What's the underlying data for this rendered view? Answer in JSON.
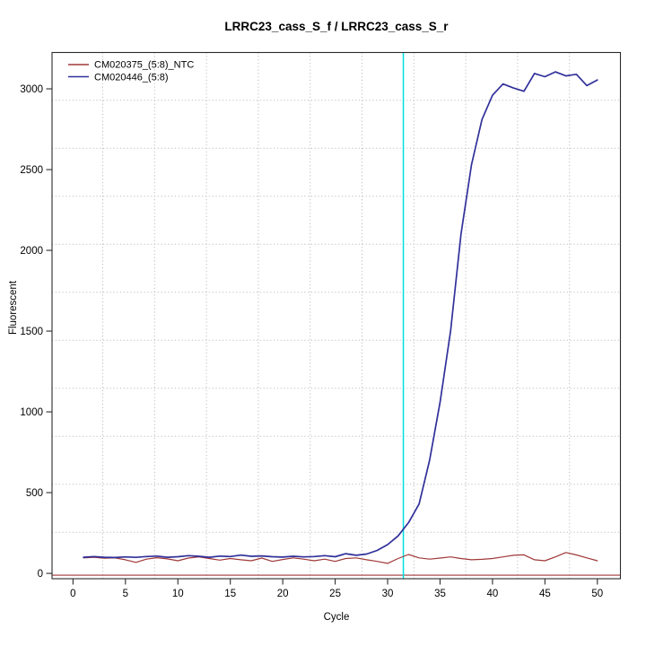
{
  "chart_data": {
    "type": "line",
    "title": "LRRC23_cass_S_f / LRRC23_cass_S_r",
    "xlabel": "Cycle",
    "ylabel": "Fluorescent",
    "x_ticks": [
      0,
      5,
      10,
      15,
      20,
      25,
      30,
      35,
      40,
      45,
      50
    ],
    "y_ticks": [
      0,
      500,
      1000,
      1500,
      2000,
      2500,
      3000
    ],
    "xlim": [
      -2.0,
      52.2
    ],
    "ylim": [
      -33,
      3225
    ],
    "grid": "dotted",
    "grid_color": "#bdbdbd",
    "legend_position": "top-left",
    "x": [
      1,
      2,
      3,
      4,
      5,
      6,
      7,
      8,
      9,
      10,
      11,
      12,
      13,
      14,
      15,
      16,
      17,
      18,
      19,
      20,
      21,
      22,
      23,
      24,
      25,
      26,
      27,
      28,
      29,
      30,
      31,
      32,
      33,
      34,
      35,
      36,
      37,
      38,
      39,
      40,
      41,
      42,
      43,
      44,
      45,
      46,
      47,
      48,
      49,
      50
    ],
    "series": [
      {
        "name": "CM020375_(5:8)_NTC",
        "color": "#a03838",
        "line_width": 1.2,
        "values": [
          96,
          100,
          94,
          96,
          84,
          68,
          88,
          97,
          90,
          78,
          95,
          102,
          92,
          82,
          92,
          84,
          78,
          95,
          74,
          86,
          96,
          88,
          78,
          88,
          74,
          92,
          96,
          84,
          74,
          62,
          92,
          117,
          96,
          88,
          95,
          102,
          92,
          84,
          87,
          92,
          102,
          112,
          115,
          84,
          78,
          102,
          129,
          114,
          96,
          78
        ]
      },
      {
        "name": "CM020446_(5:8)",
        "color": "#30309a",
        "line_width": 1.7,
        "values": [
          100,
          104,
          100,
          98,
          102,
          99,
          104,
          107,
          100,
          103,
          110,
          106,
          100,
          107,
          104,
          113,
          106,
          108,
          103,
          101,
          106,
          102,
          104,
          110,
          103,
          122,
          112,
          120,
          142,
          178,
          232,
          315,
          430,
          700,
          1060,
          1500,
          2100,
          2530,
          2810,
          2960,
          3030,
          3005,
          2985,
          3095,
          3075,
          3105,
          3080,
          3090,
          3020,
          3055
        ]
      }
    ],
    "threshold_line": {
      "value": 0,
      "color": "#a03838"
    },
    "ct_line": {
      "cycle": 31.5,
      "color": "#00dfdf"
    }
  }
}
